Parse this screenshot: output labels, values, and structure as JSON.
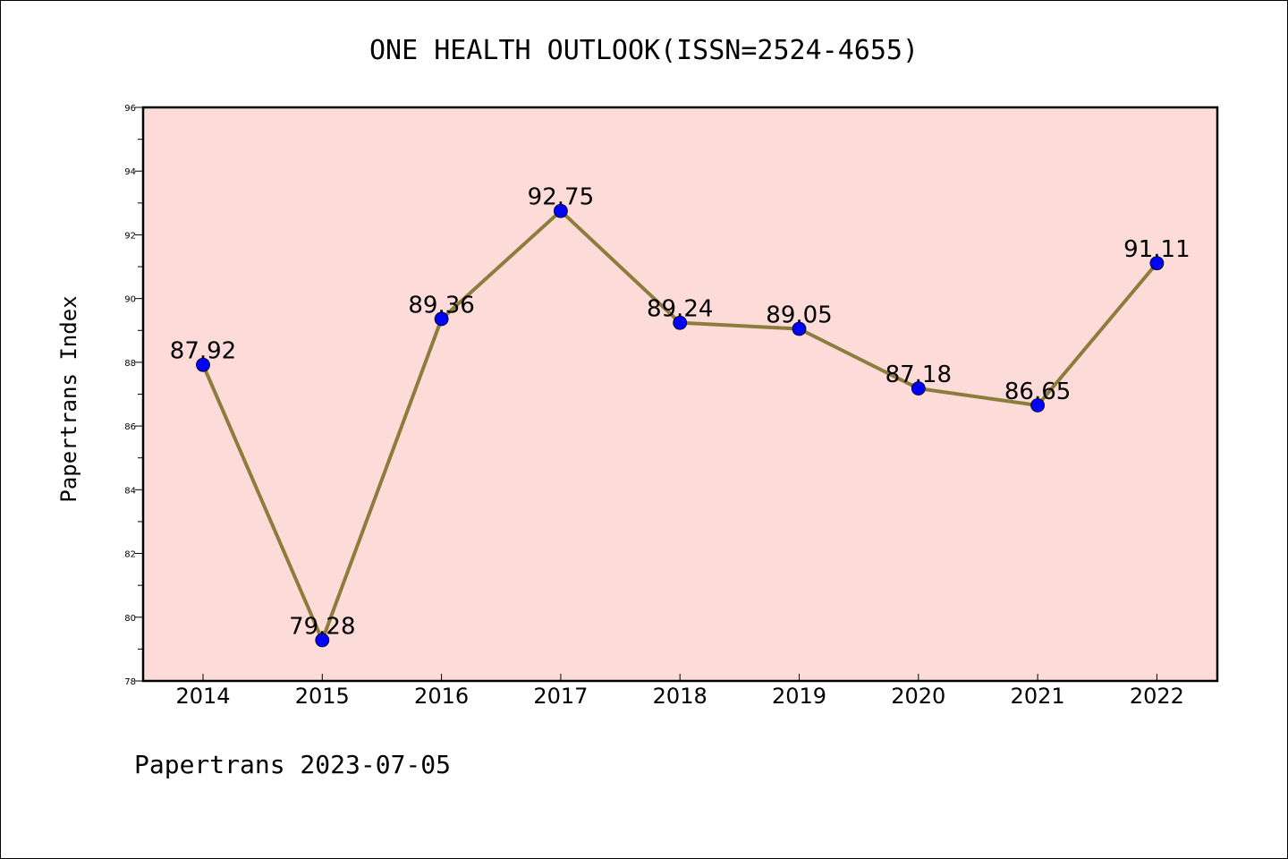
{
  "chart_data": {
    "type": "line",
    "title": "ONE HEALTH OUTLOOK(ISSN=2524-4655)",
    "ylabel": "Papertrans Index",
    "xlabel": "",
    "categories": [
      "2014",
      "2015",
      "2016",
      "2017",
      "2018",
      "2019",
      "2020",
      "2021",
      "2022"
    ],
    "series": [
      {
        "values": [
          87.92,
          79.28,
          89.36,
          92.75,
          89.24,
          89.05,
          87.18,
          86.65,
          91.11
        ],
        "labels": [
          "87.92",
          "79.28",
          "89.36",
          "92.75",
          "89.24",
          "89.05",
          "87.18",
          "86.65",
          "91.11"
        ]
      }
    ],
    "ylim": [
      78,
      96
    ],
    "yticks": [
      78,
      80,
      82,
      84,
      86,
      88,
      90,
      92,
      94,
      96
    ],
    "ytick_labels": [
      "78",
      "80",
      "82",
      "84",
      "86",
      "88",
      "90",
      "92",
      "94",
      "96"
    ],
    "grid": false,
    "colors": {
      "plot_background": "#fddbd8",
      "line": "#8c7d3c",
      "marker": "#0000ff"
    }
  },
  "footer": "Papertrans 2023-07-05"
}
